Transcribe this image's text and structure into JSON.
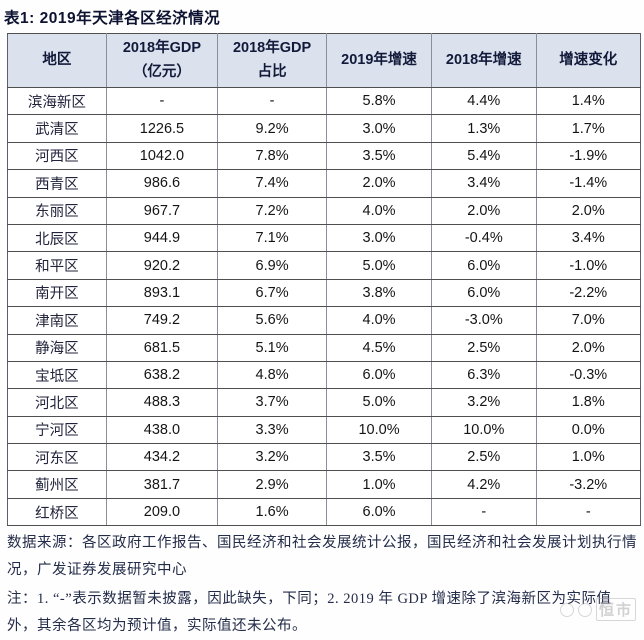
{
  "title": "表1:  2019年天津各区经济情况",
  "table": {
    "headers": [
      {
        "line1": "地区",
        "line2": ""
      },
      {
        "line1": "2018年GDP",
        "line2": "（亿元）"
      },
      {
        "line1": "2018年GDP",
        "line2": "占比"
      },
      {
        "line1": "2019年增速",
        "line2": ""
      },
      {
        "line1": "2018年增速",
        "line2": ""
      },
      {
        "line1": "增速变化",
        "line2": ""
      }
    ],
    "rows": [
      [
        "滨海新区",
        "-",
        "-",
        "5.8%",
        "4.4%",
        "1.4%"
      ],
      [
        "武清区",
        "1226.5",
        "9.2%",
        "3.0%",
        "1.3%",
        "1.7%"
      ],
      [
        "河西区",
        "1042.0",
        "7.8%",
        "3.5%",
        "5.4%",
        "-1.9%"
      ],
      [
        "西青区",
        "986.6",
        "7.4%",
        "2.0%",
        "3.4%",
        "-1.4%"
      ],
      [
        "东丽区",
        "967.7",
        "7.2%",
        "4.0%",
        "2.0%",
        "2.0%"
      ],
      [
        "北辰区",
        "944.9",
        "7.1%",
        "3.0%",
        "-0.4%",
        "3.4%"
      ],
      [
        "和平区",
        "920.2",
        "6.9%",
        "5.0%",
        "6.0%",
        "-1.0%"
      ],
      [
        "南开区",
        "893.1",
        "6.7%",
        "3.8%",
        "6.0%",
        "-2.2%"
      ],
      [
        "津南区",
        "749.2",
        "5.6%",
        "4.0%",
        "-3.0%",
        "7.0%"
      ],
      [
        "静海区",
        "681.5",
        "5.1%",
        "4.5%",
        "2.5%",
        "2.0%"
      ],
      [
        "宝坻区",
        "638.2",
        "4.8%",
        "6.0%",
        "6.3%",
        "-0.3%"
      ],
      [
        "河北区",
        "488.3",
        "3.7%",
        "5.0%",
        "3.2%",
        "1.8%"
      ],
      [
        "宁河区",
        "438.0",
        "3.3%",
        "10.0%",
        "10.0%",
        "0.0%"
      ],
      [
        "河东区",
        "434.2",
        "3.2%",
        "3.5%",
        "2.5%",
        "1.0%"
      ],
      [
        "蓟州区",
        "381.7",
        "2.9%",
        "1.0%",
        "4.2%",
        "-3.2%"
      ],
      [
        "红桥区",
        "209.0",
        "1.6%",
        "6.0%",
        "-",
        "-"
      ]
    ]
  },
  "footer": {
    "source": "数据来源：各区政府工作报告、国民经济和社会发展统计公报，国民经济和社会发展计划执行情况，广发证券发展研究中心",
    "note": "注：1. “-”表示数据暂未披露，因此缺失，下同；2. 2019 年 GDP 增速除了滨海新区为实际值外，其余各区均为预计值，实际值还未公布。"
  },
  "watermark": "恒市",
  "colors": {
    "header_bg": "#dbe2ee",
    "title_color": "#0c1230",
    "body_text": "#141414",
    "footer_text": "#232c49",
    "border_dark": "#4f4f4f",
    "border_light": "#8a8f99"
  }
}
